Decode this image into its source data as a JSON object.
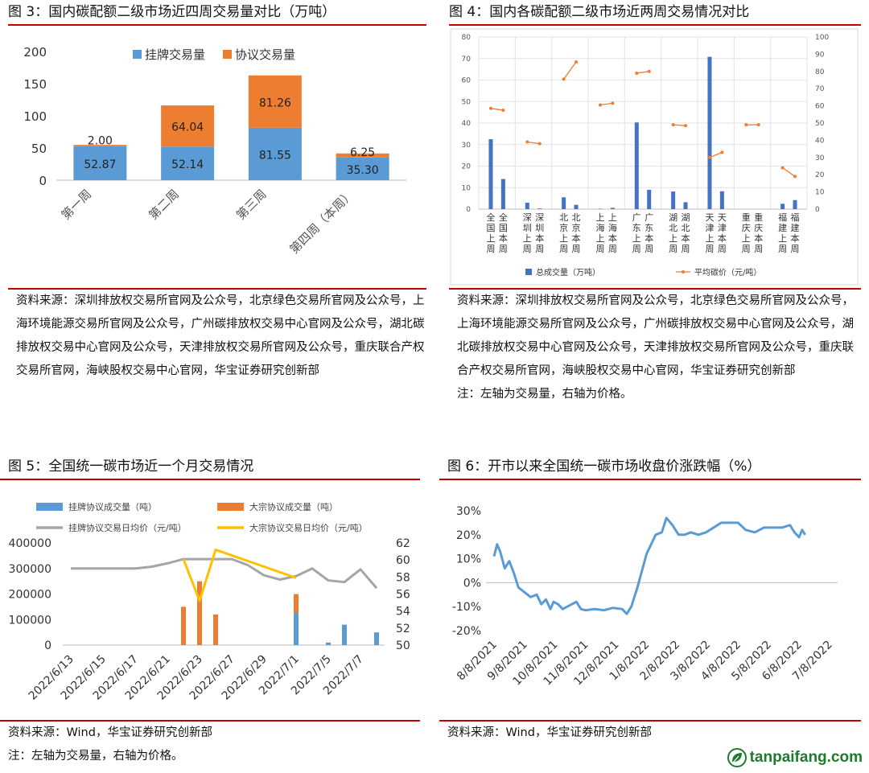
{
  "panels": {
    "fig3": {
      "title": "图 3：国内碳配额二级市场近四周交易量对比（万吨）",
      "source": "资料来源：深圳排放权交易所官网及公众号，北京绿色交易所官网及公众号，上海环境能源交易所官网及公众号，广州碳排放权交易中心官网及公众号，湖北碳排放权交易中心官网及公众号，天津排放权交易所官网及公众号，重庆联合产权交易所官网，海峡股权交易中心官网，华宝证券研究创新部"
    },
    "fig4": {
      "title": "图 4：国内各碳配额二级市场近两周交易情况对比",
      "source": "资料来源：深圳排放权交易所官网及公众号，北京绿色交易所官网及公众号，上海环境能源交易所官网及公众号，广州碳排放权交易中心官网及公众号，湖北碳排放权交易中心官网及公众号，天津排放权交易所官网及公众号，重庆联合产权交易所官网，海峡股权交易中心官网，华宝证券研究创新部",
      "note": "注：左轴为交易量，右轴为价格。"
    },
    "fig5": {
      "title": "图 5：全国统一碳市场近一个月交易情况",
      "source": "资料来源：Wind，华宝证券研究创新部",
      "note": "注：左轴为交易量，右轴为价格。"
    },
    "fig6": {
      "title": "图 6：开市以来全国统一碳市场收盘价涨跌幅（%）",
      "source": "资料来源：Wind，华宝证券研究创新部"
    }
  },
  "logo": {
    "text": "tanpaifang.com",
    "icon": "leaf-icon"
  },
  "chart_data": [
    {
      "id": "fig3",
      "type": "bar",
      "stacked": true,
      "categories": [
        "第一周",
        "第二周",
        "第三周",
        "第四周（本周）"
      ],
      "series": [
        {
          "name": "挂牌交易量",
          "color": "#5b9bd5",
          "values": [
            52.87,
            52.14,
            81.55,
            35.3
          ],
          "labels": [
            "52.87",
            "52.14",
            "81.55",
            "35.30"
          ]
        },
        {
          "name": "协议交易量",
          "color": "#ed7d31",
          "values": [
            2.0,
            64.04,
            81.26,
            6.25
          ],
          "labels": [
            "2.00",
            "64.04",
            "81.26",
            "6.25"
          ]
        }
      ],
      "yticks": [
        "0",
        "50",
        "100",
        "150",
        "200"
      ],
      "ylim": [
        0,
        200
      ],
      "legend": "top"
    },
    {
      "id": "fig4",
      "type": "bar",
      "categories": [
        "全国上周",
        "全国本周",
        "深圳上周",
        "深圳本周",
        "北京上周",
        "北京本周",
        "上海上周",
        "上海本周",
        "广东上周",
        "广东本周",
        "湖北上周",
        "湖北本周",
        "天津上周",
        "天津本周",
        "重庆上周",
        "重庆本周",
        "福建上周",
        "福建本周"
      ],
      "series": [
        {
          "name": "总成交量（万吨）",
          "axis": "left",
          "color": "#4472c4",
          "values": [
            32.5,
            14,
            3,
            0.3,
            5.5,
            2,
            0.2,
            0.6,
            40.3,
            9,
            8.2,
            3.2,
            70.8,
            8.3,
            0,
            0,
            2.5,
            4.2
          ]
        },
        {
          "name": "平均碳价（元/吨）",
          "axis": "right",
          "type": "line",
          "color": "#ed7d31",
          "pairs": [
            [
              58.5,
              57.5
            ],
            [
              39,
              38
            ],
            [
              75.5,
              85.5
            ],
            [
              60.5,
              61.5
            ],
            [
              79,
              80
            ],
            [
              49,
              48.5
            ],
            [
              30,
              33
            ],
            [
              49,
              49
            ],
            [
              24,
              19
            ]
          ]
        }
      ],
      "yticks_left": [
        "0",
        "10",
        "20",
        "30",
        "40",
        "50",
        "60",
        "70",
        "80"
      ],
      "ylim_left": [
        0,
        80
      ],
      "yticks_right": [
        "0",
        "10",
        "20",
        "30",
        "40",
        "50",
        "60",
        "70",
        "80",
        "90",
        "100"
      ],
      "ylim_right": [
        0,
        100
      ],
      "grid": true,
      "legend": "bottom"
    },
    {
      "id": "fig5",
      "type": "bar",
      "x": [
        "2022/6/13",
        "2022/6/14",
        "2022/6/15",
        "2022/6/16",
        "2022/6/17",
        "2022/6/20",
        "2022/6/21",
        "2022/6/22",
        "2022/6/23",
        "2022/6/24",
        "2022/6/27",
        "2022/6/28",
        "2022/6/29",
        "2022/6/30",
        "2022/7/1",
        "2022/7/4",
        "2022/7/5",
        "2022/7/6",
        "2022/7/7",
        "2022/7/8"
      ],
      "xticks": [
        "2022/6/13",
        "2022/6/15",
        "2022/6/17",
        "2022/6/21",
        "2022/6/23",
        "2022/6/27",
        "2022/6/29",
        "2022/7/1",
        "2022/7/5",
        "2022/7/7"
      ],
      "series": [
        {
          "name": "挂牌协议成交量（吨）",
          "axis": "left",
          "color": "#5b9bd5",
          "values": [
            0,
            0,
            0,
            0,
            0,
            0,
            0,
            0,
            0,
            0,
            0,
            0,
            0,
            0,
            125000,
            0,
            10000,
            80000,
            0,
            50000
          ]
        },
        {
          "name": "大宗协议成交量（吨）",
          "axis": "left",
          "color": "#ed7d31",
          "values": [
            0,
            0,
            0,
            0,
            0,
            0,
            0,
            150000,
            250000,
            120000,
            0,
            0,
            0,
            0,
            200000,
            0,
            0,
            0,
            0,
            0
          ]
        },
        {
          "name": "挂牌协议交易日均价（元/吨）",
          "axis": "right",
          "type": "line",
          "color": "#a5a5a5",
          "values": [
            59,
            59,
            59,
            59,
            59,
            59.2,
            59.6,
            60.1,
            60.1,
            60.1,
            60.1,
            59.4,
            58.2,
            57.7,
            58.1,
            59,
            57.6,
            57.4,
            58.9,
            56.7
          ]
        },
        {
          "name": "大宗协议交易日均价（元/吨）",
          "axis": "right",
          "type": "line",
          "color": "#ffc000",
          "values": [
            null,
            null,
            null,
            null,
            null,
            null,
            null,
            60.1,
            55.2,
            61.2,
            null,
            null,
            null,
            null,
            57.9,
            null,
            null,
            null,
            null,
            null
          ]
        }
      ],
      "yticks_left": [
        "0",
        "100000",
        "200000",
        "300000",
        "400000"
      ],
      "ylim_left": [
        0,
        400000
      ],
      "yticks_right": [
        "50",
        "52",
        "54",
        "56",
        "58",
        "60",
        "62"
      ],
      "ylim_right": [
        50,
        62
      ],
      "legend": "top"
    },
    {
      "id": "fig6",
      "type": "line",
      "xticks": [
        "8/8/2021",
        "9/8/2021",
        "10/8/2021",
        "11/8/2021",
        "12/8/2021",
        "1/8/2022",
        "2/8/2022",
        "3/8/2022",
        "4/8/2022",
        "5/8/2022",
        "6/8/2022",
        "7/8/2022"
      ],
      "series": [
        {
          "name": "收盘价涨跌幅",
          "color": "#5b9bd5",
          "points": [
            [
              0,
              11
            ],
            [
              0.1,
              16
            ],
            [
              0.2,
              13
            ],
            [
              0.35,
              6
            ],
            [
              0.5,
              9
            ],
            [
              0.65,
              4
            ],
            [
              0.8,
              -2
            ],
            [
              1.0,
              -4
            ],
            [
              1.2,
              -6
            ],
            [
              1.4,
              -5
            ],
            [
              1.55,
              -9
            ],
            [
              1.7,
              -7
            ],
            [
              1.85,
              -11
            ],
            [
              1.95,
              -8
            ],
            [
              2.1,
              -9
            ],
            [
              2.25,
              -11
            ],
            [
              2.4,
              -10
            ],
            [
              2.55,
              -9
            ],
            [
              2.7,
              -8
            ],
            [
              2.85,
              -11
            ],
            [
              3.0,
              -11.5
            ],
            [
              3.3,
              -11
            ],
            [
              3.6,
              -11.5
            ],
            [
              3.9,
              -10.5
            ],
            [
              4.2,
              -11
            ],
            [
              4.35,
              -13
            ],
            [
              4.5,
              -10
            ],
            [
              4.7,
              -2
            ],
            [
              4.85,
              5
            ],
            [
              5.0,
              12
            ],
            [
              5.15,
              16
            ],
            [
              5.3,
              20
            ],
            [
              5.5,
              21
            ],
            [
              5.65,
              27
            ],
            [
              5.85,
              24
            ],
            [
              6.05,
              20
            ],
            [
              6.25,
              20
            ],
            [
              6.45,
              21
            ],
            [
              6.7,
              20
            ],
            [
              6.95,
              21
            ],
            [
              7.2,
              23
            ],
            [
              7.45,
              25
            ],
            [
              7.7,
              25
            ],
            [
              8.0,
              25
            ],
            [
              8.25,
              22
            ],
            [
              8.55,
              21
            ],
            [
              8.85,
              23
            ],
            [
              9.15,
              23
            ],
            [
              9.45,
              23
            ],
            [
              9.7,
              24
            ],
            [
              9.85,
              21
            ],
            [
              10.0,
              19
            ],
            [
              10.1,
              22
            ],
            [
              10.2,
              20
            ]
          ]
        }
      ],
      "yticks": [
        "-20%",
        "-10%",
        "0%",
        "10%",
        "20%",
        "30%"
      ],
      "ylim": [
        -20,
        30
      ],
      "legend": "none"
    }
  ]
}
